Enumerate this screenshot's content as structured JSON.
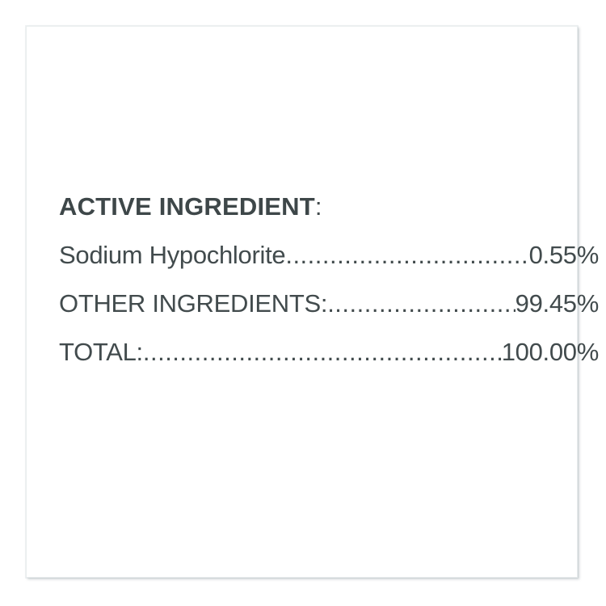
{
  "label_panel": {
    "heading": {
      "text": "ACTIVE INGREDIENT",
      "colon": ":"
    },
    "rows": [
      {
        "label": "Sodium Hypochlorite",
        "value": "0.55%"
      },
      {
        "label": "OTHER INGREDIENTS:",
        "value": "99.45%"
      },
      {
        "label": "TOTAL:",
        "value": "100.00%"
      }
    ],
    "leader_dots": "........................................................................................................................",
    "colors": {
      "text": "#424b4d",
      "heading": "#3e4749",
      "panel_border": "#e9edee",
      "panel_shadow": "#96a2a6",
      "background": "#ffffff"
    }
  }
}
